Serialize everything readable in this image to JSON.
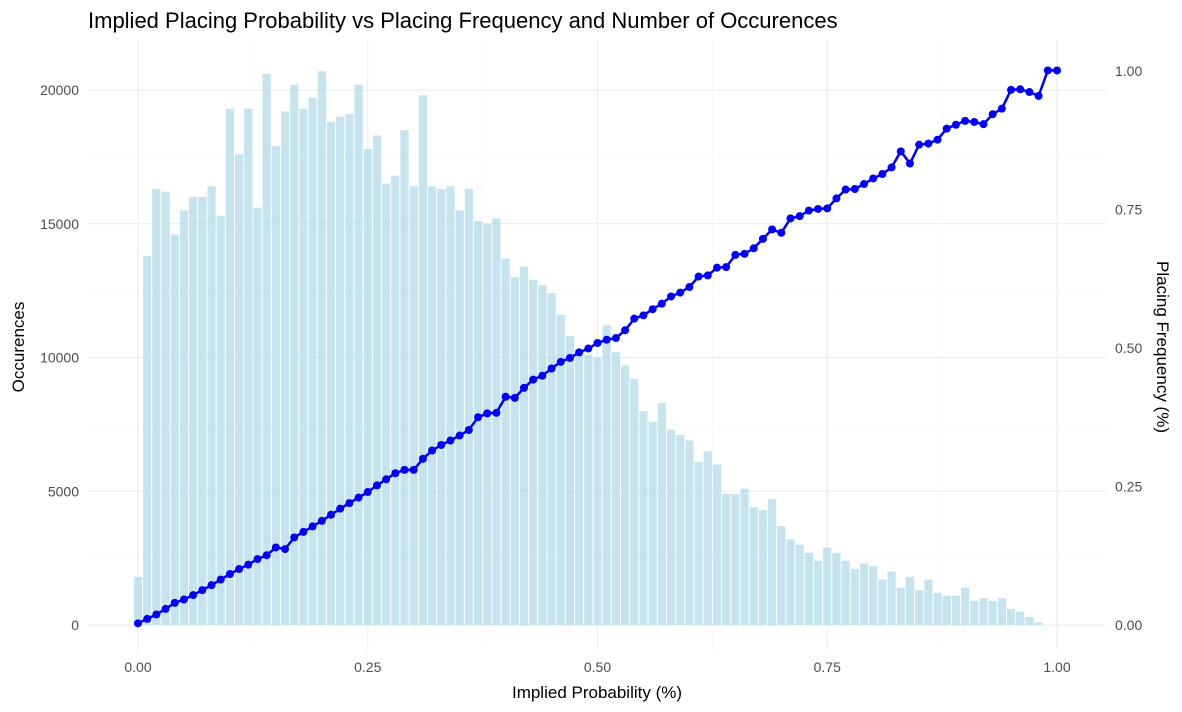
{
  "chart_data": {
    "type": "bar+line",
    "title": "Implied Placing Probability vs Placing Frequency and Number of Occurences",
    "xlabel": "Implied Probability (%)",
    "ylabel": "Occurences",
    "y2label": "Placing Frequency (%)",
    "xlim": [
      -0.01,
      1.01
    ],
    "ylim": [
      0,
      21000
    ],
    "y2lim": [
      0,
      1.05
    ],
    "xticks": [
      "0.00",
      "0.25",
      "0.50",
      "0.75",
      "1.00"
    ],
    "yticks": [
      "0",
      "5000",
      "10000",
      "15000",
      "20000"
    ],
    "y2ticks": [
      "0.00",
      "0.25",
      "0.50",
      "0.75",
      "1.00"
    ],
    "grid": true,
    "colors": {
      "bars": "#add8e6",
      "line": "#0000ff",
      "grid": "#ebebeb"
    },
    "bars": {
      "bin_width": 0.01,
      "x": [
        0.0,
        0.01,
        0.02,
        0.03,
        0.04,
        0.05,
        0.06,
        0.07,
        0.08,
        0.09,
        0.1,
        0.11,
        0.12,
        0.13,
        0.14,
        0.15,
        0.16,
        0.17,
        0.18,
        0.19,
        0.2,
        0.21,
        0.22,
        0.23,
        0.24,
        0.25,
        0.26,
        0.27,
        0.28,
        0.29,
        0.3,
        0.31,
        0.32,
        0.33,
        0.34,
        0.35,
        0.36,
        0.37,
        0.38,
        0.39,
        0.4,
        0.41,
        0.42,
        0.43,
        0.44,
        0.45,
        0.46,
        0.47,
        0.48,
        0.49,
        0.5,
        0.51,
        0.52,
        0.53,
        0.54,
        0.55,
        0.56,
        0.57,
        0.58,
        0.59,
        0.6,
        0.61,
        0.62,
        0.63,
        0.64,
        0.65,
        0.66,
        0.67,
        0.68,
        0.69,
        0.7,
        0.71,
        0.72,
        0.73,
        0.74,
        0.75,
        0.76,
        0.77,
        0.78,
        0.79,
        0.8,
        0.81,
        0.82,
        0.83,
        0.84,
        0.85,
        0.86,
        0.87,
        0.88,
        0.89,
        0.9,
        0.91,
        0.92,
        0.93,
        0.94,
        0.95,
        0.96,
        0.97,
        0.98,
        0.99
      ],
      "values": [
        1800,
        13800,
        16300,
        16200,
        14600,
        15500,
        16000,
        16000,
        16400,
        15300,
        19300,
        17600,
        19300,
        15600,
        20600,
        17900,
        19200,
        20200,
        19300,
        19700,
        20700,
        18800,
        19000,
        19100,
        20200,
        17800,
        18300,
        16500,
        16800,
        18500,
        16400,
        19800,
        16400,
        16300,
        16400,
        15500,
        16300,
        15100,
        15000,
        15200,
        13700,
        13000,
        13400,
        12900,
        12700,
        12400,
        11600,
        10800,
        10300,
        10100,
        10000,
        11200,
        10200,
        9700,
        9200,
        8000,
        7600,
        8300,
        7300,
        7100,
        6900,
        6100,
        6500,
        6000,
        4900,
        4900,
        5100,
        4400,
        4300,
        4700,
        3700,
        3200,
        3000,
        2700,
        2400,
        2900,
        2700,
        2400,
        2100,
        2300,
        2200,
        1700,
        2000,
        1400,
        1800,
        1300,
        1700,
        1200,
        1100,
        1100,
        1400,
        900,
        1000,
        900,
        1000,
        600,
        500,
        300,
        100,
        0
      ]
    },
    "series": [
      {
        "x": [
          0.0,
          0.01,
          0.02,
          0.03,
          0.04,
          0.05,
          0.06,
          0.07,
          0.08,
          0.09,
          0.1,
          0.11,
          0.12,
          0.13,
          0.14,
          0.15,
          0.16,
          0.17,
          0.18,
          0.19,
          0.2,
          0.21,
          0.22,
          0.23,
          0.24,
          0.25,
          0.26,
          0.27,
          0.28,
          0.29,
          0.3,
          0.31,
          0.32,
          0.33,
          0.34,
          0.35,
          0.36,
          0.37,
          0.38,
          0.39,
          0.4,
          0.41,
          0.42,
          0.43,
          0.44,
          0.45,
          0.46,
          0.47,
          0.48,
          0.49,
          0.5,
          0.51,
          0.52,
          0.53,
          0.54,
          0.55,
          0.56,
          0.57,
          0.58,
          0.59,
          0.6,
          0.61,
          0.62,
          0.63,
          0.64,
          0.65,
          0.66,
          0.67,
          0.68,
          0.69,
          0.7,
          0.71,
          0.72,
          0.73,
          0.74,
          0.75,
          0.76,
          0.77,
          0.78,
          0.79,
          0.8,
          0.81,
          0.82,
          0.83,
          0.84,
          0.85,
          0.86,
          0.87,
          0.88,
          0.89,
          0.9,
          0.91,
          0.92,
          0.93,
          0.94,
          0.95,
          0.96,
          0.97,
          0.98,
          0.99,
          1.0
        ],
        "values": [
          0.003,
          0.011,
          0.019,
          0.029,
          0.04,
          0.046,
          0.054,
          0.063,
          0.072,
          0.082,
          0.092,
          0.101,
          0.109,
          0.119,
          0.126,
          0.14,
          0.137,
          0.158,
          0.168,
          0.178,
          0.188,
          0.199,
          0.21,
          0.22,
          0.23,
          0.24,
          0.252,
          0.263,
          0.274,
          0.28,
          0.28,
          0.3,
          0.315,
          0.325,
          0.333,
          0.342,
          0.352,
          0.375,
          0.382,
          0.383,
          0.412,
          0.41,
          0.428,
          0.443,
          0.45,
          0.463,
          0.475,
          0.482,
          0.492,
          0.499,
          0.509,
          0.515,
          0.518,
          0.532,
          0.553,
          0.559,
          0.57,
          0.58,
          0.593,
          0.6,
          0.61,
          0.629,
          0.631,
          0.645,
          0.646,
          0.668,
          0.67,
          0.68,
          0.697,
          0.714,
          0.708,
          0.734,
          0.738,
          0.748,
          0.751,
          0.752,
          0.77,
          0.786,
          0.787,
          0.796,
          0.806,
          0.814,
          0.826,
          0.855,
          0.833,
          0.867,
          0.869,
          0.876,
          0.896,
          0.903,
          0.91,
          0.908,
          0.904,
          0.922,
          0.932,
          0.966,
          0.967,
          0.962,
          0.955,
          1.001,
          1.001
        ]
      }
    ]
  }
}
